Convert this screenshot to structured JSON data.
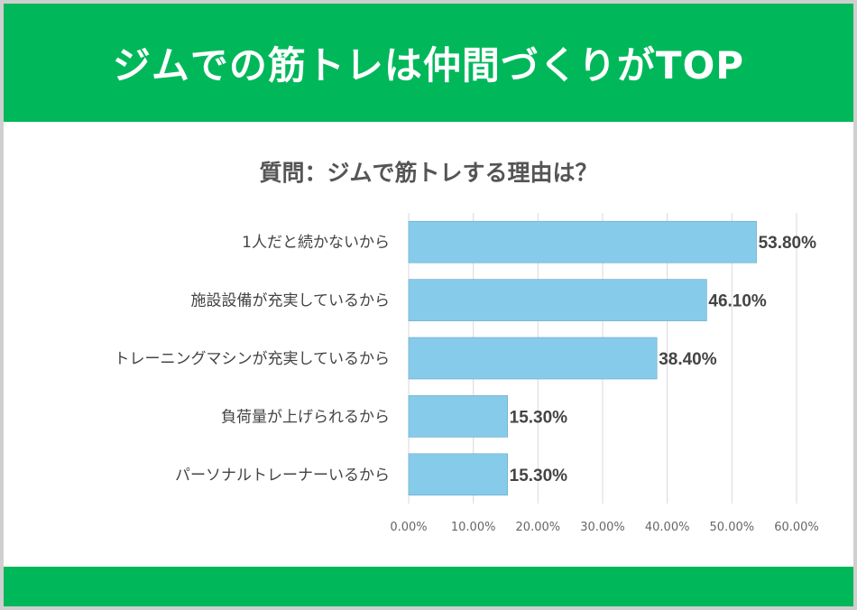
{
  "banner": {
    "title": "ジムでの筋トレは仲間づくりがTOP"
  },
  "colors": {
    "accent": "#00b85a",
    "bar": "#87cbea",
    "bar_stroke": "#63a7c7",
    "text": "#444444",
    "grid": "#d9d9d9"
  },
  "chart_data": {
    "type": "bar",
    "orientation": "horizontal",
    "title": "質問：ジムで筋トレする理由は？",
    "categories": [
      "1人だと続かないから",
      "施設設備が充実しているから",
      "トレーニングマシンが充実しているから",
      "負荷量が上げられるから",
      "パーソナルトレーナーいるから"
    ],
    "values": [
      53.8,
      46.1,
      38.4,
      15.3,
      15.3
    ],
    "value_labels": [
      "53.80%",
      "46.10%",
      "38.40%",
      "15.30%",
      "15.30%"
    ],
    "xlim": [
      0,
      60
    ],
    "xticks": [
      0,
      10,
      20,
      30,
      40,
      50,
      60
    ],
    "xtick_labels": [
      "0.00%",
      "10.00%",
      "20.00%",
      "30.00%",
      "40.00%",
      "50.00%",
      "60.00%"
    ],
    "grid": true,
    "xlabel": "",
    "ylabel": ""
  }
}
